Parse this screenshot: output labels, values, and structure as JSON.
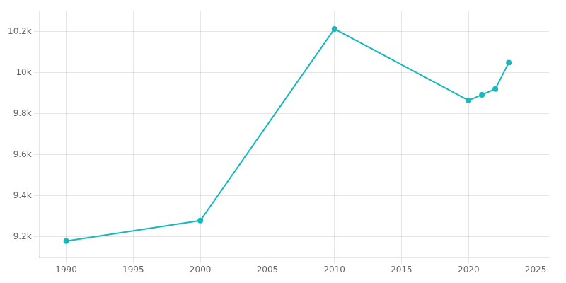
{
  "chart_data": {
    "type": "line",
    "x": [
      1990,
      2000,
      2010,
      2020,
      2021,
      2022,
      2023
    ],
    "values": [
      9179,
      9279,
      10214,
      9865,
      9893,
      9921,
      10050
    ],
    "color": "#17b8be",
    "marker": "circle",
    "line_style": "solid",
    "xlim": [
      1988,
      2026
    ],
    "xticks": [
      1990,
      1995,
      2000,
      2005,
      2010,
      2015,
      2020,
      2025
    ],
    "ylim": [
      9100,
      10300
    ],
    "yticks": [
      {
        "value": 9200,
        "label": "9.2k"
      },
      {
        "value": 9400,
        "label": "9.4k"
      },
      {
        "value": 9600,
        "label": "9.6k"
      },
      {
        "value": 9800,
        "label": "9.8k"
      },
      {
        "value": 10000,
        "label": "10k"
      },
      {
        "value": 10200,
        "label": "10.2k"
      }
    ],
    "grid": true
  }
}
